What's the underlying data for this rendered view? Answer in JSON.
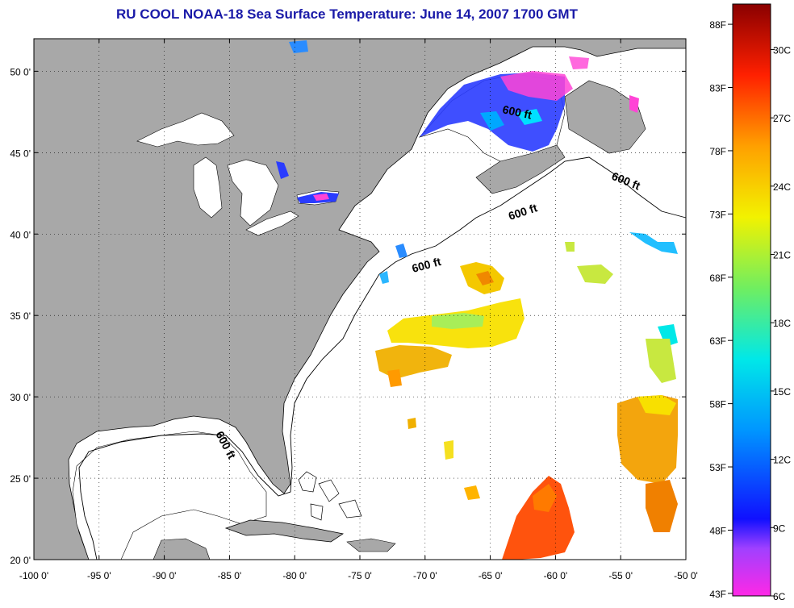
{
  "title": "RU COOL  NOAA-18  Sea Surface Temperature:  June 14, 2007 1700 GMT",
  "map": {
    "lon_range": [
      -100,
      -50
    ],
    "lat_range": [
      20,
      52
    ],
    "lon_labels": [
      "-100 0'",
      "-95 0'",
      "-90 0'",
      "-85 0'",
      "-80 0'",
      "-75 0'",
      "-70 0'",
      "-65 0'",
      "-60 0'",
      "-55 0'",
      "-50 0'"
    ],
    "lat_labels": [
      "20 0'",
      "25 0'",
      "30 0'",
      "35 0'",
      "40 0'",
      "45 0'",
      "50 0'"
    ],
    "grid": "dotted",
    "land_color": "#a8a8a8",
    "water_color": "#ffffff",
    "depth_label": "600 ft"
  },
  "colorbar": {
    "range_c": [
      6,
      32
    ],
    "fahrenheit_labels": [
      "88F",
      "83F",
      "78F",
      "73F",
      "68F",
      "63F",
      "58F",
      "53F",
      "48F",
      "43F"
    ],
    "celsius_labels": [
      "30C",
      "27C",
      "24C",
      "21C",
      "18C",
      "15C",
      "12C",
      "9C",
      "6C"
    ]
  }
}
